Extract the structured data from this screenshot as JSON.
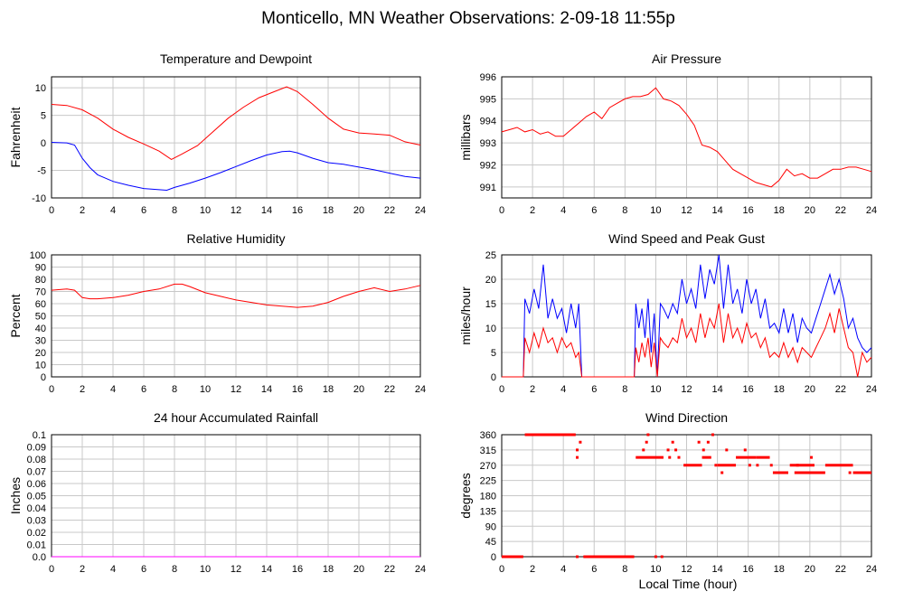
{
  "page_title": "Monticello, MN Weather Observations: 2-09-18 11:55p",
  "x_axis_label": "Local Time (hour)",
  "x_ticks": [
    "0",
    "2",
    "4",
    "6",
    "8",
    "10",
    "12",
    "14",
    "16",
    "18",
    "20",
    "22",
    "24"
  ],
  "colors": {
    "red": "#ff0000",
    "blue": "#0000ff",
    "grid": "#c8c8c8",
    "magenta": "#ff00ff"
  },
  "chart_data": [
    {
      "id": "temp",
      "type": "line",
      "title": "Temperature and Dewpoint",
      "ylabel": "Fahrenheit",
      "xlim": [
        0,
        24
      ],
      "ylim": [
        -10,
        12
      ],
      "y_ticks": [
        "-10",
        "-5",
        "0",
        "5",
        "10"
      ],
      "y_tick_values": [
        -10,
        -5,
        0,
        5,
        10
      ],
      "grid": true,
      "series": [
        {
          "color": "#ff0000",
          "x": [
            0,
            1,
            2,
            3,
            4,
            5,
            6,
            7,
            7.8,
            8.5,
            9.5,
            10.5,
            11.5,
            12.5,
            13.5,
            14.5,
            15.3,
            16,
            17,
            18,
            19,
            20,
            21,
            22,
            23,
            24
          ],
          "y": [
            7,
            6.8,
            6,
            4.5,
            2.5,
            1,
            -0.2,
            -1.5,
            -3,
            -2,
            -0.5,
            2,
            4.5,
            6.5,
            8.2,
            9.3,
            10.2,
            9.3,
            7,
            4.5,
            2.5,
            1.8,
            1.6,
            1.4,
            0.2,
            -0.4
          ]
        },
        {
          "color": "#0000ff",
          "x": [
            0,
            1,
            1.5,
            2,
            2.5,
            3,
            4,
            5,
            6,
            7,
            7.5,
            8,
            9,
            10,
            11,
            12,
            13,
            14,
            15,
            15.5,
            16,
            17,
            18,
            19,
            20,
            21,
            22,
            23,
            24
          ],
          "y": [
            0.1,
            0,
            -0.4,
            -2.8,
            -4.5,
            -5.8,
            -7,
            -7.7,
            -8.3,
            -8.5,
            -8.6,
            -8.1,
            -7.3,
            -6.4,
            -5.4,
            -4.3,
            -3.2,
            -2.2,
            -1.6,
            -1.5,
            -1.8,
            -2.8,
            -3.6,
            -3.9,
            -4.4,
            -4.9,
            -5.5,
            -6.1,
            -6.4
          ]
        }
      ]
    },
    {
      "id": "pressure",
      "type": "line",
      "title": "Air Pressure",
      "ylabel": "millibars",
      "xlim": [
        0,
        24
      ],
      "ylim": [
        990.5,
        996
      ],
      "y_ticks": [
        "991",
        "992",
        "993",
        "994",
        "995",
        "996"
      ],
      "y_tick_values": [
        991,
        992,
        993,
        994,
        995,
        996
      ],
      "grid": true,
      "series": [
        {
          "color": "#ff0000",
          "x": [
            0,
            0.5,
            1,
            1.5,
            2,
            2.5,
            3,
            3.5,
            4,
            4.5,
            5,
            5.5,
            6,
            6.5,
            7,
            7.5,
            8,
            8.5,
            9,
            9.5,
            10,
            10.5,
            11,
            11.5,
            12,
            12.5,
            13,
            13.5,
            14,
            14.5,
            15,
            15.5,
            16,
            16.5,
            17,
            17.5,
            18,
            18.5,
            19,
            19.5,
            20,
            20.5,
            21,
            21.5,
            22,
            22.5,
            23,
            23.5,
            24
          ],
          "y": [
            993.5,
            993.6,
            993.7,
            993.5,
            993.6,
            993.4,
            993.5,
            993.3,
            993.3,
            993.6,
            993.9,
            994.2,
            994.4,
            994.1,
            994.6,
            994.8,
            995.0,
            995.1,
            995.1,
            995.2,
            995.5,
            995.0,
            994.9,
            994.7,
            994.3,
            993.8,
            992.9,
            992.8,
            992.6,
            992.2,
            991.8,
            991.6,
            991.4,
            991.2,
            991.1,
            991.0,
            991.3,
            991.8,
            991.5,
            991.6,
            991.4,
            991.4,
            991.6,
            991.8,
            991.8,
            991.9,
            991.9,
            991.8,
            991.7
          ]
        }
      ]
    },
    {
      "id": "humidity",
      "type": "line",
      "title": "Relative Humidity",
      "ylabel": "Percent",
      "xlim": [
        0,
        24
      ],
      "ylim": [
        0,
        100
      ],
      "y_ticks": [
        "0",
        "10",
        "20",
        "30",
        "40",
        "50",
        "60",
        "70",
        "80",
        "90",
        "100"
      ],
      "y_tick_values": [
        0,
        10,
        20,
        30,
        40,
        50,
        60,
        70,
        80,
        90,
        100
      ],
      "grid": true,
      "series": [
        {
          "color": "#ff0000",
          "x": [
            0,
            1,
            1.5,
            2,
            2.5,
            3,
            4,
            5,
            6,
            7,
            8,
            8.5,
            9,
            10,
            11,
            12,
            13,
            14,
            15,
            16,
            17,
            18,
            19,
            20,
            21,
            22,
            23,
            24
          ],
          "y": [
            71,
            72,
            71,
            65,
            64,
            64,
            65,
            67,
            70,
            72,
            76,
            76,
            74,
            69,
            66,
            63,
            61,
            59,
            58,
            57,
            58,
            61,
            66,
            70,
            73,
            70,
            72,
            75
          ]
        }
      ]
    },
    {
      "id": "wind",
      "type": "line",
      "title": "Wind Speed and Peak Gust",
      "ylabel": "miles/hour",
      "xlim": [
        0,
        24
      ],
      "ylim": [
        0,
        25
      ],
      "y_ticks": [
        "0",
        "5",
        "10",
        "15",
        "20",
        "25"
      ],
      "y_tick_values": [
        0,
        5,
        10,
        15,
        20,
        25
      ],
      "grid": true,
      "series": [
        {
          "color": "#0000ff",
          "x": [
            0,
            1.4,
            1.5,
            1.8,
            2.1,
            2.4,
            2.7,
            3.0,
            3.3,
            3.6,
            3.9,
            4.2,
            4.5,
            4.8,
            5.0,
            5.2,
            8.6,
            8.7,
            8.9,
            9.1,
            9.3,
            9.5,
            9.7,
            9.9,
            10.1,
            10.3,
            10.5,
            10.8,
            11.1,
            11.4,
            11.7,
            12.0,
            12.3,
            12.6,
            12.9,
            13.2,
            13.5,
            13.8,
            14.1,
            14.4,
            14.7,
            15.0,
            15.3,
            15.6,
            15.9,
            16.2,
            16.5,
            16.8,
            17.1,
            17.4,
            17.7,
            18.0,
            18.3,
            18.6,
            18.9,
            19.2,
            19.5,
            19.8,
            20.1,
            20.4,
            20.7,
            21.0,
            21.3,
            21.6,
            21.9,
            22.2,
            22.5,
            22.8,
            23.1,
            23.4,
            23.7,
            24
          ],
          "y": [
            0,
            0,
            16,
            13,
            18,
            14,
            23,
            12,
            16,
            12,
            14,
            9,
            15,
            10,
            15,
            0,
            0,
            15,
            10,
            14,
            8,
            16,
            5,
            13,
            0,
            15,
            14,
            12,
            15,
            13,
            20,
            15,
            18,
            14,
            23,
            16,
            22,
            19,
            25,
            14,
            23,
            15,
            18,
            13,
            20,
            15,
            18,
            12,
            16,
            10,
            11,
            9,
            14,
            9,
            13,
            7,
            12,
            10,
            9,
            12,
            15,
            18,
            21,
            17,
            20,
            16,
            10,
            12,
            8,
            6,
            5,
            6
          ]
        },
        {
          "color": "#ff0000",
          "x": [
            0,
            1.4,
            1.5,
            1.8,
            2.1,
            2.4,
            2.7,
            3.0,
            3.3,
            3.6,
            3.9,
            4.2,
            4.5,
            4.8,
            5.0,
            5.2,
            8.6,
            8.7,
            8.9,
            9.1,
            9.3,
            9.5,
            9.7,
            9.9,
            10.1,
            10.3,
            10.5,
            10.8,
            11.1,
            11.4,
            11.7,
            12.0,
            12.3,
            12.6,
            12.9,
            13.2,
            13.5,
            13.8,
            14.1,
            14.4,
            14.7,
            15.0,
            15.3,
            15.6,
            15.9,
            16.2,
            16.5,
            16.8,
            17.1,
            17.4,
            17.7,
            18.0,
            18.3,
            18.6,
            18.9,
            19.2,
            19.5,
            19.8,
            20.1,
            20.4,
            20.7,
            21.0,
            21.3,
            21.6,
            21.9,
            22.2,
            22.5,
            22.8,
            23.1,
            23.4,
            23.7,
            24
          ],
          "y": [
            0,
            0,
            8,
            5,
            9,
            6,
            10,
            7,
            8,
            5,
            8,
            6,
            7,
            4,
            5,
            0,
            0,
            6,
            3,
            7,
            4,
            8,
            2,
            7,
            0,
            8,
            7,
            6,
            8,
            7,
            12,
            8,
            10,
            7,
            13,
            8,
            12,
            10,
            15,
            7,
            13,
            8,
            10,
            7,
            11,
            8,
            9,
            6,
            8,
            4,
            5,
            4,
            7,
            4,
            6,
            3,
            6,
            5,
            4,
            6,
            8,
            10,
            13,
            9,
            14,
            10,
            6,
            5,
            0,
            5,
            3,
            4
          ]
        }
      ]
    },
    {
      "id": "rain",
      "type": "line",
      "title": "24 hour Accumulated Rainfall",
      "ylabel": "Inches",
      "xlim": [
        0,
        24
      ],
      "ylim": [
        0,
        0.1
      ],
      "y_ticks": [
        "0.0",
        "0.01",
        "0.02",
        "0.03",
        "0.04",
        "0.05",
        "0.06",
        "0.07",
        "0.08",
        "0.09",
        "0.1"
      ],
      "y_tick_values": [
        0,
        0.01,
        0.02,
        0.03,
        0.04,
        0.05,
        0.06,
        0.07,
        0.08,
        0.09,
        0.1
      ],
      "grid": true,
      "series": [
        {
          "color": "#ff00ff",
          "x": [
            0,
            24
          ],
          "y": [
            0,
            0
          ]
        }
      ]
    },
    {
      "id": "direction",
      "type": "scatter",
      "title": "Wind Direction",
      "ylabel": "degrees",
      "xlim": [
        0,
        24
      ],
      "ylim": [
        0,
        360
      ],
      "y_ticks": [
        "0",
        "45",
        "90",
        "135",
        "180",
        "225",
        "270",
        "315",
        "360"
      ],
      "y_tick_values": [
        0,
        45,
        90,
        135,
        180,
        225,
        270,
        315,
        360
      ],
      "grid": true,
      "series": [
        {
          "color": "#ff0000",
          "segments": [
            {
              "x0": 0,
              "x1": 1.4,
              "y": 0
            },
            {
              "x0": 1.5,
              "x1": 4.8,
              "y": 360
            },
            {
              "x0": 5.3,
              "x1": 8.6,
              "y": 0
            },
            {
              "x0": 8.7,
              "x1": 10.5,
              "y": 293
            },
            {
              "x0": 11.8,
              "x1": 13.0,
              "y": 270
            },
            {
              "x0": 13.0,
              "x1": 13.6,
              "y": 293
            },
            {
              "x0": 14.0,
              "x1": 15.2,
              "y": 270
            },
            {
              "x0": 15.2,
              "x1": 16.5,
              "y": 293
            },
            {
              "x0": 16.5,
              "x1": 17.4,
              "y": 293
            },
            {
              "x0": 17.6,
              "x1": 18.6,
              "y": 248
            },
            {
              "x0": 18.7,
              "x1": 20.3,
              "y": 270
            },
            {
              "x0": 19.0,
              "x1": 21.0,
              "y": 248
            },
            {
              "x0": 21.0,
              "x1": 22.8,
              "y": 270
            },
            {
              "x0": 22.8,
              "x1": 24,
              "y": 248
            }
          ],
          "points": [
            {
              "x": 4.9,
              "y": 315
            },
            {
              "x": 4.9,
              "y": 293
            },
            {
              "x": 5.1,
              "y": 338
            },
            {
              "x": 4.9,
              "y": 0
            },
            {
              "x": 9.2,
              "y": 315
            },
            {
              "x": 9.4,
              "y": 338
            },
            {
              "x": 9.5,
              "y": 360
            },
            {
              "x": 10.0,
              "y": 0
            },
            {
              "x": 10.4,
              "y": 0
            },
            {
              "x": 10.8,
              "y": 315
            },
            {
              "x": 10.9,
              "y": 293
            },
            {
              "x": 11.1,
              "y": 338
            },
            {
              "x": 11.3,
              "y": 315
            },
            {
              "x": 11.5,
              "y": 293
            },
            {
              "x": 12.8,
              "y": 338
            },
            {
              "x": 13.1,
              "y": 315
            },
            {
              "x": 13.4,
              "y": 338
            },
            {
              "x": 13.7,
              "y": 360
            },
            {
              "x": 13.9,
              "y": 270
            },
            {
              "x": 14.3,
              "y": 248
            },
            {
              "x": 14.6,
              "y": 315
            },
            {
              "x": 15.8,
              "y": 315
            },
            {
              "x": 16.1,
              "y": 270
            },
            {
              "x": 16.6,
              "y": 270
            },
            {
              "x": 17.5,
              "y": 270
            },
            {
              "x": 19.2,
              "y": 270
            },
            {
              "x": 20.1,
              "y": 293
            },
            {
              "x": 20.8,
              "y": 248
            },
            {
              "x": 22.6,
              "y": 248
            }
          ]
        }
      ]
    }
  ]
}
